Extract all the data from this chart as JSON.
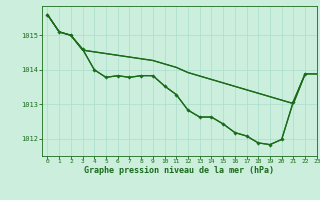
{
  "title": "Graphe pression niveau de la mer (hPa)",
  "background_color": "#cceedd",
  "grid_color": "#aaddcc",
  "line_color": "#1a6b1a",
  "xlim": [
    -0.5,
    23
  ],
  "ylim": [
    1011.5,
    1015.85
  ],
  "yticks": [
    1012,
    1013,
    1014,
    1015
  ],
  "xticks": [
    0,
    1,
    2,
    3,
    4,
    5,
    6,
    7,
    8,
    9,
    10,
    11,
    12,
    13,
    14,
    15,
    16,
    17,
    18,
    19,
    20,
    21,
    22,
    23
  ],
  "s1": [
    1015.6,
    1015.1,
    1015.0,
    1014.6,
    1014.0,
    1013.78,
    1013.83,
    1013.78,
    1013.83,
    1013.83,
    1013.53,
    1013.28,
    1012.83,
    1012.63,
    1012.63,
    1012.43,
    1012.18,
    1012.08,
    1011.88,
    1011.83,
    1011.98,
    1013.08,
    1013.88,
    null
  ],
  "s2": [
    1015.6,
    1015.1,
    1015.0,
    1014.6,
    1014.0,
    1013.78,
    1013.83,
    1013.78,
    1013.83,
    1013.83,
    1013.53,
    1013.28,
    1012.83,
    1012.63,
    1012.63,
    1012.43,
    1012.18,
    1012.08,
    1011.88,
    1011.83,
    1011.98,
    1013.08,
    1013.88,
    1013.88
  ],
  "s3": [
    1015.6,
    1015.1,
    1015.0,
    1014.57,
    1014.52,
    1014.47,
    1014.42,
    1014.37,
    1014.32,
    1014.27,
    1014.17,
    1014.07,
    1013.92,
    1013.82,
    1013.72,
    1013.62,
    1013.52,
    1013.42,
    1013.32,
    1013.22,
    1013.12,
    1013.02,
    1013.88,
    null
  ],
  "s4": [
    1015.6,
    1015.1,
    1015.0,
    1014.57,
    1014.52,
    1014.47,
    1014.42,
    1014.37,
    1014.32,
    1014.27,
    1014.17,
    1014.07,
    1013.92,
    1013.82,
    1013.72,
    1013.62,
    1013.52,
    1013.42,
    1013.32,
    1013.22,
    1013.12,
    1013.02,
    1013.88,
    1013.88
  ]
}
